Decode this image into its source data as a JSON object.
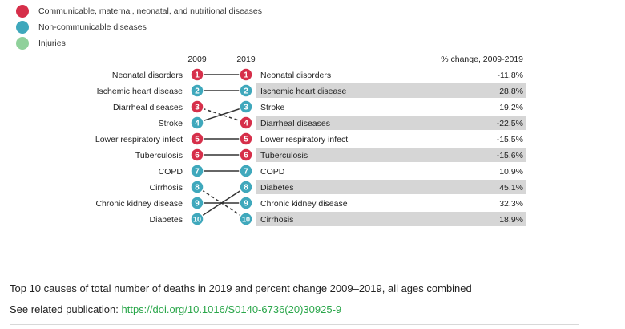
{
  "colors": {
    "communicable": "#d62f4a",
    "non_communicable": "#3fa8bc",
    "injuries": "#8fd19b",
    "highlight_row": "#d6d6d6",
    "link": "#2aa64a"
  },
  "legend": [
    {
      "label": "Communicable, maternal, neonatal, and nutritional diseases",
      "color": "#d62f4a"
    },
    {
      "label": "Non-communicable diseases",
      "color": "#3fa8bc"
    },
    {
      "label": "Injuries",
      "color": "#8fd19b"
    }
  ],
  "chart_data": {
    "type": "table",
    "column_headers": {
      "left": "2009",
      "right": "2019",
      "change": "% change, 2009-2019"
    },
    "ranks_2009": [
      {
        "rank": 1,
        "cause": "Neonatal disorders",
        "group": "communicable"
      },
      {
        "rank": 2,
        "cause": "Ischemic heart disease",
        "group": "non_communicable"
      },
      {
        "rank": 3,
        "cause": "Diarrheal diseases",
        "group": "communicable"
      },
      {
        "rank": 4,
        "cause": "Stroke",
        "group": "non_communicable"
      },
      {
        "rank": 5,
        "cause": "Lower respiratory infect",
        "group": "communicable"
      },
      {
        "rank": 6,
        "cause": "Tuberculosis",
        "group": "communicable"
      },
      {
        "rank": 7,
        "cause": "COPD",
        "group": "non_communicable"
      },
      {
        "rank": 8,
        "cause": "Cirrhosis",
        "group": "non_communicable"
      },
      {
        "rank": 9,
        "cause": "Chronic kidney disease",
        "group": "non_communicable"
      },
      {
        "rank": 10,
        "cause": "Diabetes",
        "group": "non_communicable"
      }
    ],
    "ranks_2019": [
      {
        "rank": 1,
        "cause": "Neonatal disorders",
        "group": "communicable",
        "change": "-11.8%",
        "rank_2009": 1
      },
      {
        "rank": 2,
        "cause": "Ischemic heart disease",
        "group": "non_communicable",
        "change": "28.8%",
        "rank_2009": 2
      },
      {
        "rank": 3,
        "cause": "Stroke",
        "group": "non_communicable",
        "change": "19.2%",
        "rank_2009": 4
      },
      {
        "rank": 4,
        "cause": "Diarrheal diseases",
        "group": "communicable",
        "change": "-22.5%",
        "rank_2009": 3
      },
      {
        "rank": 5,
        "cause": "Lower respiratory infect",
        "group": "communicable",
        "change": "-15.5%",
        "rank_2009": 5
      },
      {
        "rank": 6,
        "cause": "Tuberculosis",
        "group": "communicable",
        "change": "-15.6%",
        "rank_2009": 6
      },
      {
        "rank": 7,
        "cause": "COPD",
        "group": "non_communicable",
        "change": "10.9%",
        "rank_2009": 7
      },
      {
        "rank": 8,
        "cause": "Diabetes",
        "group": "non_communicable",
        "change": "45.1%",
        "rank_2009": 10
      },
      {
        "rank": 9,
        "cause": "Chronic kidney disease",
        "group": "non_communicable",
        "change": "32.3%",
        "rank_2009": 9
      },
      {
        "rank": 10,
        "cause": "Cirrhosis",
        "group": "non_communicable",
        "change": "18.9%",
        "rank_2009": 8
      }
    ]
  },
  "caption": "Top 10 causes of total number of deaths in 2019 and percent change 2009–2019, all ages combined",
  "related": {
    "prefix": "See related publication: ",
    "link_text": "https://doi.org/10.1016/S0140-6736(20)30925-9"
  }
}
